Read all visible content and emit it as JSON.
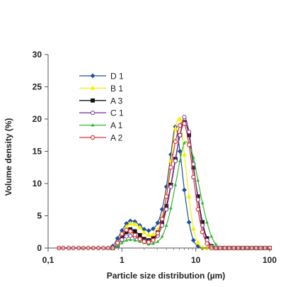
{
  "chart_data": {
    "type": "line",
    "xlabel": "Particle size distribution (µm)",
    "ylabel": "Volume density (%)",
    "xscale": "log",
    "xlim": [
      0.1,
      100
    ],
    "ylim": [
      0,
      30
    ],
    "x_ticks": [
      0.1,
      1,
      10,
      100
    ],
    "x_tick_labels": [
      "0,1",
      "1",
      "10",
      "100"
    ],
    "y_ticks": [
      0,
      5,
      10,
      15,
      20,
      25,
      30
    ],
    "y_tick_labels": [
      "0",
      "5",
      "10",
      "15",
      "20",
      "25",
      "30"
    ],
    "grid": false,
    "legend_position": "top-left",
    "x": [
      0.14,
      0.16,
      0.19,
      0.22,
      0.26,
      0.3,
      0.35,
      0.41,
      0.48,
      0.56,
      0.65,
      0.75,
      0.87,
      1.0,
      1.15,
      1.3,
      1.5,
      1.75,
      2.0,
      2.3,
      2.65,
      3.05,
      3.5,
      4.0,
      4.6,
      5.3,
      6.1,
      7.0,
      8.1,
      9.3,
      10.7,
      12.3,
      14.2,
      16.3,
      18.7,
      21.5,
      24.7,
      28.4,
      32.7,
      37.6,
      43.2,
      49.7,
      57.2,
      65.7,
      75.6,
      86.9,
      100
    ],
    "series": [
      {
        "name": "D1",
        "color": "#1f4e9c",
        "marker": "diamond",
        "values": [
          0,
          0,
          0,
          0,
          0,
          0,
          0,
          0,
          0,
          0,
          0,
          0.3,
          1.5,
          2.7,
          3.8,
          4.2,
          4.1,
          3.5,
          2.9,
          2.7,
          3.0,
          3.9,
          6.0,
          9.5,
          14.5,
          18.8,
          15.0,
          9.0,
          4.0,
          1.2,
          0.3,
          0,
          0,
          0,
          0,
          0,
          0,
          0,
          0,
          0,
          0,
          0,
          0,
          0,
          0,
          0,
          0
        ]
      },
      {
        "name": "B1",
        "color": "#f5f000",
        "marker": "triangle",
        "values": [
          0,
          0,
          0,
          0,
          0,
          0,
          0,
          0,
          0,
          0,
          0,
          0,
          0.8,
          2.0,
          3.3,
          3.8,
          3.7,
          3.2,
          2.4,
          2.0,
          2.1,
          2.8,
          4.8,
          8.2,
          13.5,
          18.5,
          20.0,
          14.5,
          8.0,
          3.0,
          0.8,
          0.1,
          0,
          0,
          0,
          0,
          0,
          0,
          0,
          0,
          0,
          0,
          0,
          0,
          0,
          0,
          0
        ]
      },
      {
        "name": "A3",
        "color": "#111111",
        "marker": "square",
        "values": [
          0,
          0,
          0,
          0,
          0,
          0,
          0,
          0,
          0,
          0,
          0,
          0,
          0.4,
          1.5,
          2.5,
          2.9,
          2.6,
          2.0,
          1.4,
          1.2,
          1.5,
          2.4,
          4.0,
          6.5,
          9.8,
          13.8,
          17.5,
          19.5,
          17.5,
          12.5,
          8.0,
          4.0,
          1.5,
          0.3,
          0,
          0,
          0,
          0,
          0,
          0,
          0,
          0,
          0,
          0,
          0,
          0,
          0
        ]
      },
      {
        "name": "C1",
        "color": "#7d3c98",
        "marker": "circle",
        "values": [
          0,
          0,
          0,
          0,
          0,
          0,
          0,
          0,
          0,
          0,
          0,
          0,
          0.5,
          1.3,
          1.8,
          1.9,
          1.7,
          1.4,
          1.1,
          1.0,
          1.2,
          1.9,
          3.5,
          6.0,
          9.5,
          13.5,
          17.5,
          20.3,
          18.0,
          13.0,
          7.5,
          3.5,
          1.2,
          0.2,
          0,
          0,
          0,
          0,
          0,
          0,
          0,
          0,
          0,
          0,
          0,
          0,
          0
        ]
      },
      {
        "name": "A1",
        "color": "#2db82d",
        "marker": "triangle-small",
        "values": [
          0,
          0,
          0,
          0,
          0,
          0,
          0,
          0,
          0,
          0,
          0,
          0,
          0.3,
          0.8,
          1.2,
          1.3,
          1.2,
          1.0,
          0.8,
          0.6,
          0.7,
          1.0,
          1.8,
          3.5,
          6.2,
          9.8,
          13.5,
          16.3,
          16.0,
          14.0,
          10.5,
          7.0,
          4.0,
          1.8,
          0.6,
          0.1,
          0,
          0,
          0,
          0,
          0,
          0,
          0,
          0,
          0,
          0,
          0
        ]
      },
      {
        "name": "A2",
        "color": "#e0303a",
        "marker": "circle-open",
        "values": [
          0,
          0,
          0,
          0,
          0,
          0,
          0,
          0,
          0,
          0,
          0,
          0,
          0.8,
          2.2,
          2.8,
          2.6,
          2.0,
          1.4,
          1.0,
          0.9,
          1.2,
          2.3,
          4.5,
          8.0,
          12.5,
          16.5,
          19.0,
          19.3,
          16.0,
          11.0,
          6.0,
          2.5,
          0.7,
          0,
          0,
          0,
          0,
          0,
          0,
          0,
          0,
          0,
          0,
          0,
          0,
          0,
          0
        ]
      }
    ]
  }
}
